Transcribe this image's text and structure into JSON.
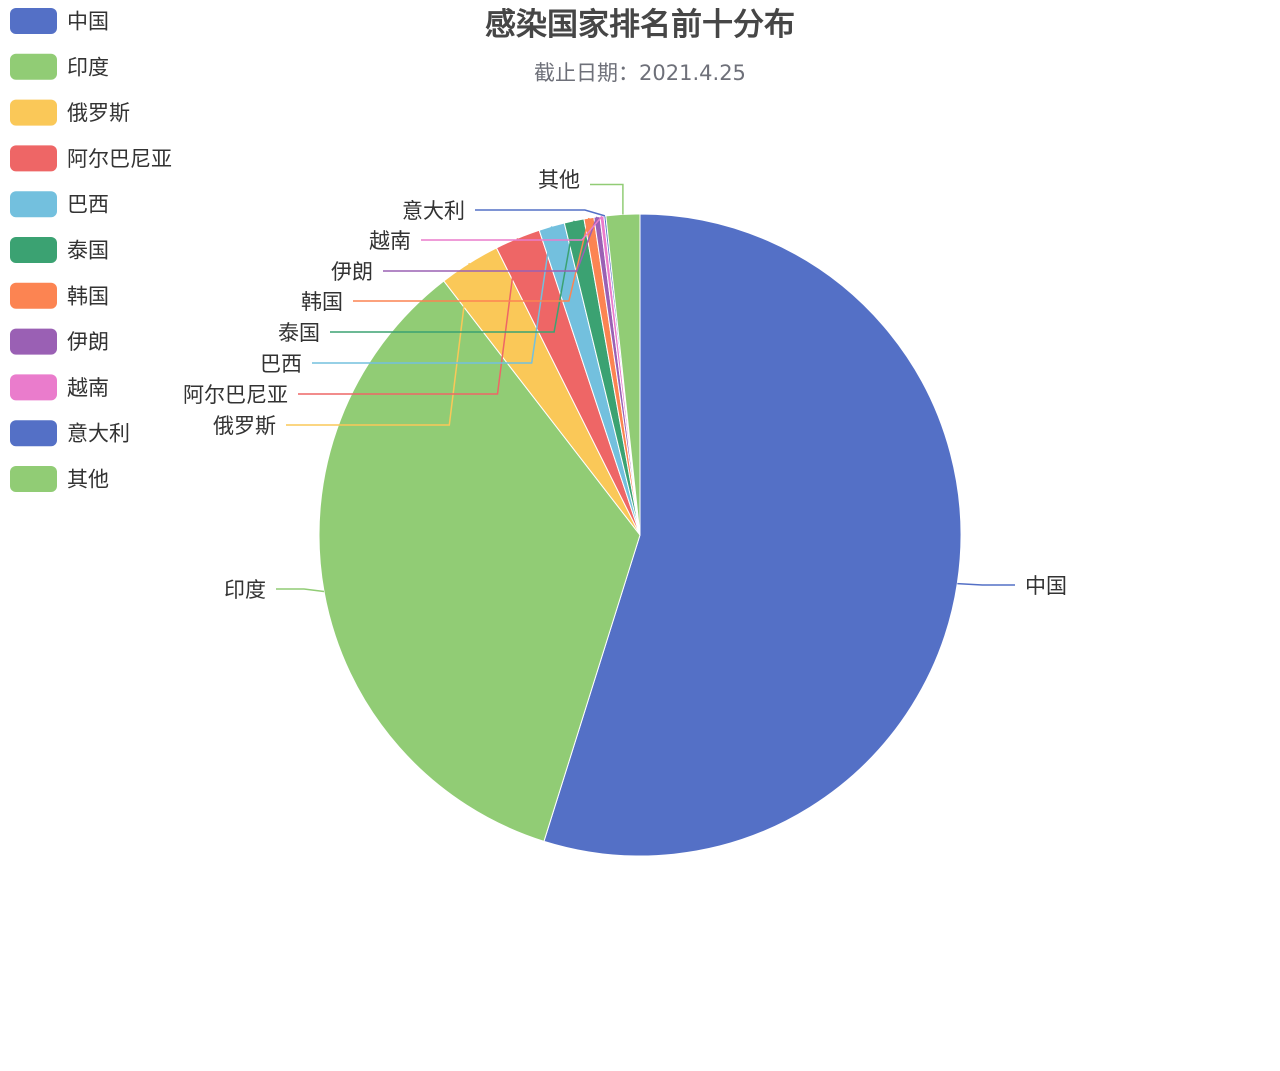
{
  "chart_data": {
    "type": "pie",
    "title": "感染国家排名前十分布",
    "subtitle": "截止日期：2021.4.25",
    "legend_position": "top-left",
    "legend": [
      "中国",
      "印度",
      "俄罗斯",
      "阿尔巴尼亚",
      "巴西",
      "泰国",
      "韩国",
      "伊朗",
      "越南",
      "意大利",
      "其他"
    ],
    "slices": [
      {
        "name": "中国",
        "value": 55.0,
        "color": "#5470c6"
      },
      {
        "name": "印度",
        "value": 34.8,
        "color": "#91cc75"
      },
      {
        "name": "俄罗斯",
        "value": 3.1,
        "color": "#fac858"
      },
      {
        "name": "阿尔巴尼亚",
        "value": 2.3,
        "color": "#ee6666"
      },
      {
        "name": "巴西",
        "value": 1.3,
        "color": "#73c0de"
      },
      {
        "name": "泰国",
        "value": 1.0,
        "color": "#3ba272"
      },
      {
        "name": "韩国",
        "value": 0.5,
        "color": "#fc8452"
      },
      {
        "name": "伊朗",
        "value": 0.3,
        "color": "#9a60b4"
      },
      {
        "name": "越南",
        "value": 0.2,
        "color": "#ea7ccc"
      },
      {
        "name": "意大利",
        "value": 0.1,
        "color": "#5470c6"
      },
      {
        "name": "其他",
        "value": 1.7,
        "color": "#91cc75"
      }
    ]
  }
}
